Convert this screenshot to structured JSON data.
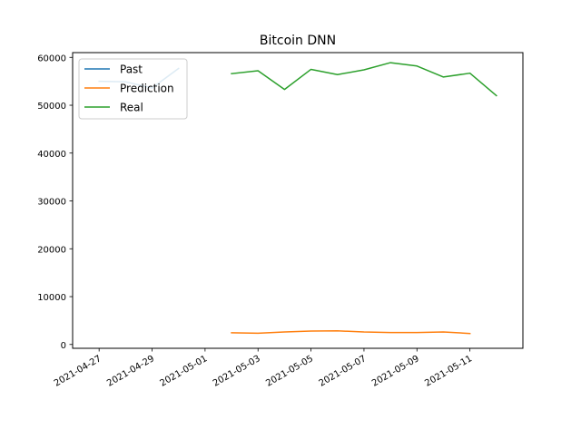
{
  "chart_data": {
    "type": "line",
    "title": "Bitcoin DNN",
    "xlabel": "",
    "ylabel": "",
    "x_ticks": [
      "2021-04-27",
      "2021-04-29",
      "2021-05-01",
      "2021-05-03",
      "2021-05-05",
      "2021-05-07",
      "2021-05-09",
      "2021-05-11"
    ],
    "x_range": [
      "2021-04-26",
      "2021-05-13"
    ],
    "y_ticks": [
      0,
      10000,
      20000,
      30000,
      40000,
      50000,
      60000
    ],
    "ylim": [
      -800,
      61000
    ],
    "grid": false,
    "legend": "top-left",
    "series": [
      {
        "name": "Past",
        "color": "#1f77b4",
        "points": [
          {
            "x": "2021-04-27",
            "y": 55000
          },
          {
            "x": "2021-04-28",
            "y": 54900
          },
          {
            "x": "2021-04-29",
            "y": 53600
          },
          {
            "x": "2021-04-30",
            "y": 57700
          }
        ]
      },
      {
        "name": "Prediction",
        "color": "#ff7f0e",
        "points": [
          {
            "x": "2021-05-02",
            "y": 2450
          },
          {
            "x": "2021-05-03",
            "y": 2350
          },
          {
            "x": "2021-05-04",
            "y": 2600
          },
          {
            "x": "2021-05-05",
            "y": 2800
          },
          {
            "x": "2021-05-06",
            "y": 2850
          },
          {
            "x": "2021-05-07",
            "y": 2600
          },
          {
            "x": "2021-05-08",
            "y": 2500
          },
          {
            "x": "2021-05-09",
            "y": 2500
          },
          {
            "x": "2021-05-10",
            "y": 2600
          },
          {
            "x": "2021-05-11",
            "y": 2300
          }
        ]
      },
      {
        "name": "Real",
        "color": "#2ca02c",
        "points": [
          {
            "x": "2021-05-02",
            "y": 56600
          },
          {
            "x": "2021-05-03",
            "y": 57200
          },
          {
            "x": "2021-05-04",
            "y": 53300
          },
          {
            "x": "2021-05-05",
            "y": 57500
          },
          {
            "x": "2021-05-06",
            "y": 56400
          },
          {
            "x": "2021-05-07",
            "y": 57400
          },
          {
            "x": "2021-05-08",
            "y": 58900
          },
          {
            "x": "2021-05-09",
            "y": 58200
          },
          {
            "x": "2021-05-10",
            "y": 55900
          },
          {
            "x": "2021-05-11",
            "y": 56700
          },
          {
            "x": "2021-05-12",
            "y": 52000
          }
        ]
      }
    ]
  }
}
